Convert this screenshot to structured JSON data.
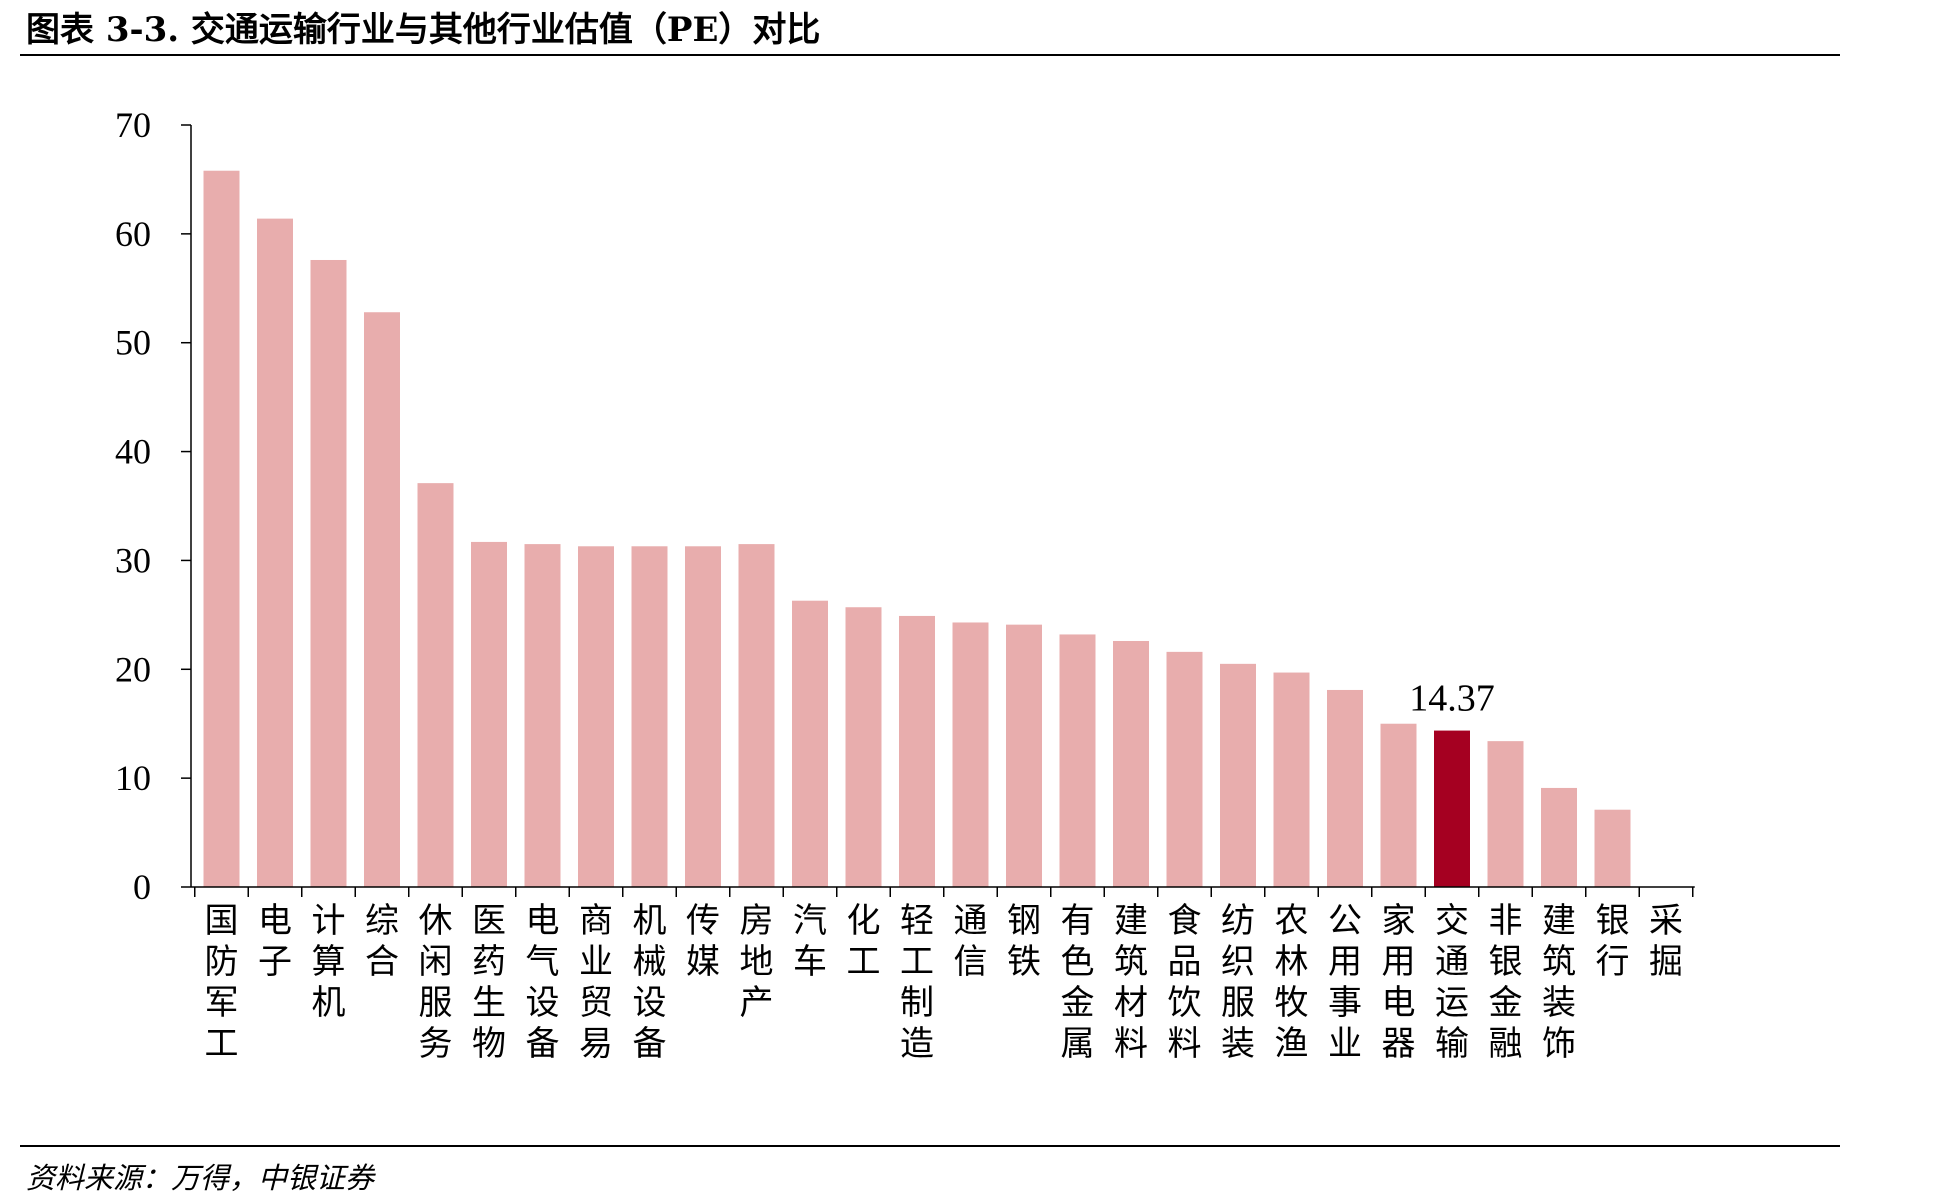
{
  "header": {
    "title": "图表 3-3. 交通运输行业与其他行业估值（PE）对比"
  },
  "footer": {
    "source": "资料来源：万得，中银证券"
  },
  "colors": {
    "bar": "#E8ADAD",
    "highlight": "#A50021",
    "axis": "#000000"
  },
  "chart_data": {
    "type": "bar",
    "title": "",
    "xlabel": "",
    "ylabel": "",
    "ylim": [
      0,
      70
    ],
    "yticks": [
      0,
      10,
      20,
      30,
      40,
      50,
      60,
      70
    ],
    "grid": false,
    "legend": "none",
    "categories": [
      "国防军工",
      "电子",
      "计算机",
      "综合",
      "休闲服务",
      "医药生物",
      "电气设备",
      "商业贸易",
      "机械设备",
      "传媒",
      "房地产",
      "汽车",
      "化工",
      "轻工制造",
      "通信",
      "钢铁",
      "有色金属",
      "建筑材料",
      "食品饮料",
      "纺织服装",
      "农林牧渔",
      "公用事业",
      "家用电器",
      "交通运输",
      "非银金融",
      "建筑装饰",
      "银行",
      "采掘"
    ],
    "values": [
      65.8,
      61.4,
      57.6,
      52.8,
      37.1,
      31.7,
      31.5,
      31.3,
      31.3,
      31.3,
      31.5,
      26.3,
      25.7,
      24.9,
      24.3,
      24.1,
      23.2,
      22.6,
      21.6,
      20.5,
      19.7,
      18.1,
      15.0,
      14.37,
      13.4,
      9.1,
      7.1,
      0
    ],
    "highlight_category": "交通运输",
    "data_labels": [
      {
        "category": "交通运输",
        "text": "14.37"
      }
    ]
  }
}
